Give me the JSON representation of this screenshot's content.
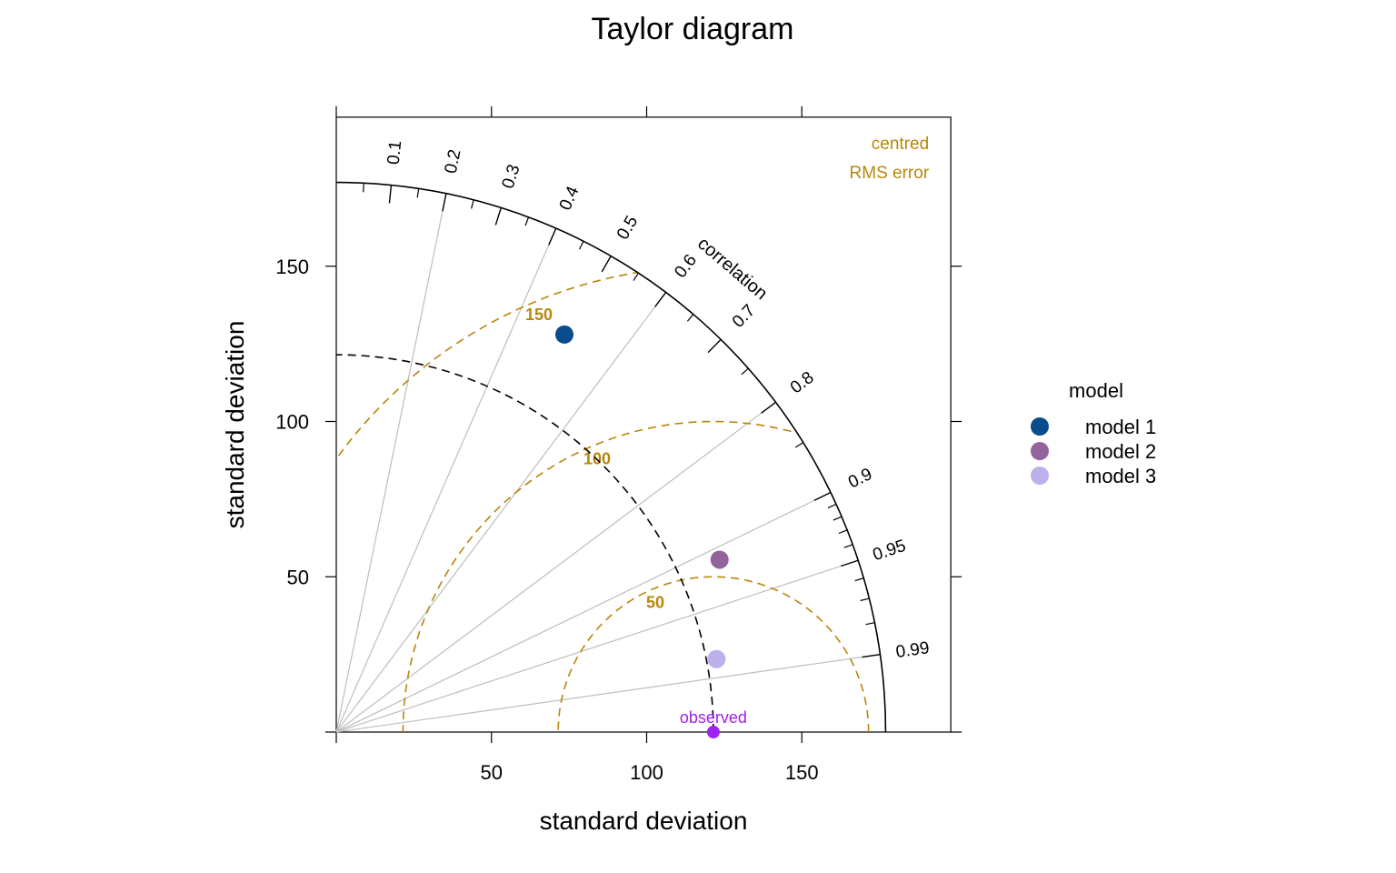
{
  "chart_data": {
    "type": "scatter",
    "subtype": "taylor-diagram",
    "title": "Taylor diagram",
    "xlabel": "standard deviation",
    "ylabel": "standard deviation",
    "xlim": [
      0,
      198
    ],
    "ylim": [
      0,
      198
    ],
    "x_ticks": [
      "50",
      "100",
      "150"
    ],
    "y_ticks": [
      "50",
      "100",
      "150"
    ],
    "grid": false,
    "max_sd": 177,
    "correlation_label": "correlation",
    "correlation_ticks": [
      "0.1",
      "0.2",
      "0.3",
      "0.4",
      "0.5",
      "0.6",
      "0.7",
      "0.8",
      "0.9",
      "0.95",
      "0.99"
    ],
    "correlation_values": [
      0.1,
      0.2,
      0.3,
      0.4,
      0.5,
      0.6,
      0.7,
      0.8,
      0.9,
      0.95,
      0.99
    ],
    "correlation_minor": [
      0.05,
      0.15,
      0.25,
      0.35,
      0.45,
      0.55,
      0.65,
      0.75,
      0.85,
      0.91,
      0.92,
      0.93,
      0.94,
      0.96,
      0.97,
      0.98
    ],
    "correlation_lines": [
      0.2,
      0.4,
      0.6,
      0.8,
      0.9,
      0.95,
      0.99
    ],
    "rms_title": [
      "centred",
      "RMS error"
    ],
    "rms_contours": [
      {
        "value": 50,
        "label": "50"
      },
      {
        "value": 100,
        "label": "100"
      },
      {
        "value": 150,
        "label": "150"
      }
    ],
    "observed": {
      "label": "observed",
      "sd": 121.5,
      "color": "#A020F0"
    },
    "legend_title": "model",
    "legend_position": "right",
    "series": [
      {
        "name": "model 1",
        "x": 73.5,
        "y": 128,
        "color": "#0A4C8C"
      },
      {
        "name": "model 2",
        "x": 123.5,
        "y": 55.5,
        "color": "#93639B"
      },
      {
        "name": "model 3",
        "x": 122.5,
        "y": 23.5,
        "color": "#BDB0EC"
      }
    ],
    "colors": {
      "rms": "#B8860B",
      "grid_lines": "#BEBEBE",
      "axis": "#000000"
    }
  }
}
